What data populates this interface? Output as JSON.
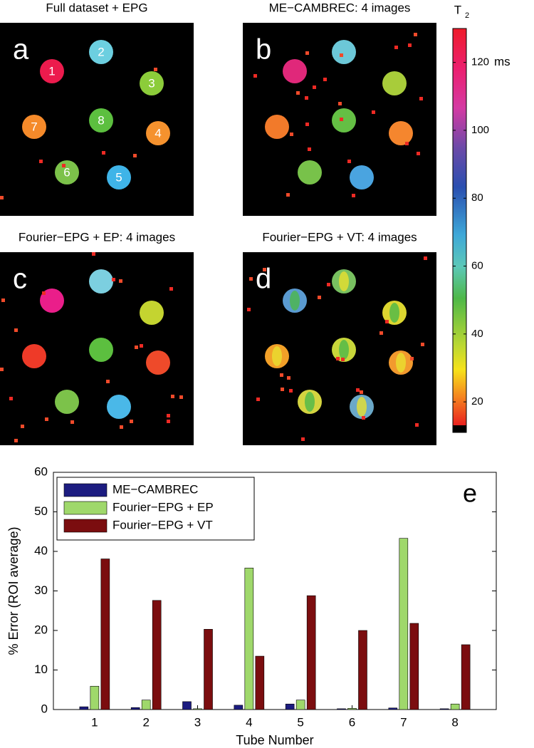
{
  "panels": [
    {
      "label": "a",
      "title": "Full dataset + EPG",
      "tube_labels": [
        "1",
        "2",
        "3",
        "7",
        "8",
        "4",
        "6",
        "5"
      ]
    },
    {
      "label": "b",
      "title": "ME−CAMBREC: 4 images"
    },
    {
      "label": "c",
      "title": "Fourier−EPG + EP: 4 images"
    },
    {
      "label": "d",
      "title": "Fourier−EPG + VT: 4 images"
    }
  ],
  "colorbar": {
    "title": "T",
    "subscript": "2",
    "unit": "ms",
    "lim": [
      11,
      130
    ],
    "ticks": [
      20,
      40,
      60,
      80,
      100,
      120
    ]
  },
  "chart_data": {
    "type": "bar",
    "panel_label": "e",
    "x_label": "Tube Number",
    "y_label": "% Error (ROI average)",
    "categories": [
      "1",
      "2",
      "3",
      "4",
      "5",
      "6",
      "7",
      "8"
    ],
    "series": [
      {
        "name": "ME−CAMBREC",
        "color": "#1c1c80",
        "values": [
          0.7,
          0.5,
          2.0,
          1.1,
          1.4,
          0.2,
          0.4,
          0.2
        ]
      },
      {
        "name": "Fourier−EPG + EP",
        "color": "#9fd86b",
        "values": [
          5.9,
          2.4,
          0.2,
          35.8,
          2.4,
          0.3,
          43.3,
          1.4
        ]
      },
      {
        "name": "Fourier−EPG + VT",
        "color": "#7b0d0f",
        "values": [
          38.1,
          27.6,
          20.3,
          13.5,
          28.8,
          20.0,
          21.8,
          16.4
        ]
      }
    ],
    "ylim": [
      0,
      60
    ],
    "yticks": [
      0,
      10,
      20,
      30,
      40,
      50,
      60
    ],
    "legend": "upper left"
  }
}
